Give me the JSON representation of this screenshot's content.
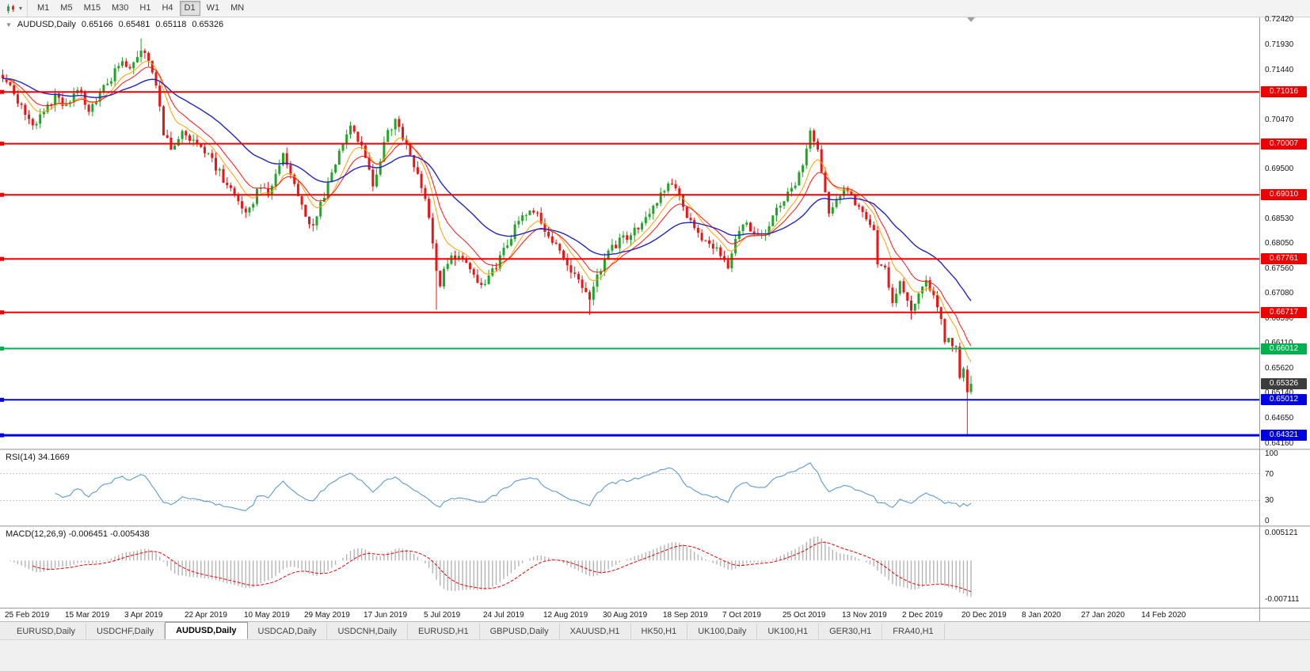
{
  "toolbar": {
    "chart_tool_icon": "candlestick-chart-icon",
    "timeframes": [
      "M1",
      "M5",
      "M15",
      "M30",
      "H1",
      "H4",
      "D1",
      "W1",
      "MN"
    ],
    "active_timeframe": "D1"
  },
  "chart": {
    "title": "AUDUSD,Daily",
    "ohlc": {
      "open": "0.65166",
      "high": "0.65481",
      "low": "0.65118",
      "close": "0.65326"
    },
    "price_ticks": [
      "0.72420",
      "0.71930",
      "0.71440",
      "0.70960",
      "0.70470",
      "0.69980",
      "0.69500",
      "0.69010",
      "0.68530",
      "0.68050",
      "0.67560",
      "0.67080",
      "0.66590",
      "0.66110",
      "0.65620",
      "0.65140",
      "0.64650",
      "0.64160"
    ],
    "price_range": {
      "top": 0.7247,
      "bottom": 0.6406
    },
    "hlines": [
      {
        "price": 0.71016,
        "label": "0.71016",
        "color": "#ee0000",
        "width": 2
      },
      {
        "price": 0.70007,
        "label": "0.70007",
        "color": "#ee0000",
        "width": 2
      },
      {
        "price": 0.6901,
        "label": "0.69010",
        "color": "#ee0000",
        "width": 2
      },
      {
        "price": 0.67761,
        "label": "0.67761",
        "color": "#ee0000",
        "width": 2
      },
      {
        "price": 0.66717,
        "label": "0.66717",
        "color": "#ee0000",
        "width": 2
      },
      {
        "price": 0.66012,
        "label": "0.66012",
        "color": "#00b050",
        "width": 2
      },
      {
        "price": 0.65012,
        "label": "0.65012",
        "color": "#0000e0",
        "width": 2
      },
      {
        "price": 0.64321,
        "label": "0.64321",
        "color": "#0000e0",
        "width": 3
      }
    ],
    "bid_label": {
      "price": 0.65326,
      "label": "0.65326",
      "bg": "#3c3c3c"
    }
  },
  "indicators": {
    "rsi": {
      "label": "RSI(14) 34.1669",
      "value": "34.1669",
      "period": 14,
      "color": "#5a9bd4",
      "ticks": [
        "100",
        "70",
        "30",
        "0"
      ],
      "levels": [
        70,
        30
      ]
    },
    "macd": {
      "label": "MACD(12,26,9) -0.006451 -0.005438",
      "main": "-0.006451",
      "signal": "-0.005438",
      "ticks": [
        "0.005121",
        "-0.007111"
      ],
      "range": [
        0.0056,
        -0.0078
      ],
      "hist_color": "#b4b4b4",
      "signal_color": "#f00000"
    }
  },
  "chart_data": {
    "type": "candlestick",
    "symbol": "AUDUSD",
    "period": "Daily",
    "date_start": "25 Feb 2019",
    "date_end": "14 Feb 2020",
    "count": 260,
    "last_candle": {
      "open": 0.65166,
      "high": 0.65481,
      "low": 0.65118,
      "close": 0.65326
    },
    "colors": {
      "up": "#21a527",
      "down": "#ec1414"
    },
    "anchors": [
      [
        0,
        0.7135
      ],
      [
        4,
        0.7085
      ],
      [
        8,
        0.7035
      ],
      [
        11,
        0.7062
      ],
      [
        14,
        0.7092
      ],
      [
        17,
        0.7072
      ],
      [
        20,
        0.7105
      ],
      [
        23,
        0.7068
      ],
      [
        26,
        0.71
      ],
      [
        29,
        0.713
      ],
      [
        32,
        0.7165
      ],
      [
        34,
        0.7148
      ],
      [
        37,
        0.7188
      ],
      [
        39,
        0.7165
      ],
      [
        41,
        0.712
      ],
      [
        43,
        0.7018
      ],
      [
        45,
        0.6995
      ],
      [
        48,
        0.7022
      ],
      [
        51,
        0.701
      ],
      [
        54,
        0.6988
      ],
      [
        57,
        0.6955
      ],
      [
        60,
        0.692
      ],
      [
        63,
        0.6888
      ],
      [
        65,
        0.6868
      ],
      [
        67,
        0.689
      ],
      [
        69,
        0.6922
      ],
      [
        71,
        0.6902
      ],
      [
        73,
        0.6942
      ],
      [
        75,
        0.6975
      ],
      [
        77,
        0.6945
      ],
      [
        79,
        0.6898
      ],
      [
        81,
        0.6852
      ],
      [
        83,
        0.6838
      ],
      [
        85,
        0.688
      ],
      [
        87,
        0.6925
      ],
      [
        89,
        0.6962
      ],
      [
        91,
        0.7008
      ],
      [
        93,
        0.7042
      ],
      [
        95,
        0.7012
      ],
      [
        97,
        0.6972
      ],
      [
        99,
        0.6925
      ],
      [
        101,
        0.6968
      ],
      [
        103,
        0.7025
      ],
      [
        105,
        0.7042
      ],
      [
        107,
        0.7012
      ],
      [
        109,
        0.6978
      ],
      [
        111,
        0.6942
      ],
      [
        113,
        0.6892
      ],
      [
        115,
        0.6812
      ],
      [
        116,
        0.6755
      ],
      [
        117,
        0.672
      ],
      [
        118,
        0.6762
      ],
      [
        120,
        0.6782
      ],
      [
        123,
        0.6772
      ],
      [
        126,
        0.6752
      ],
      [
        128,
        0.6722
      ],
      [
        130,
        0.6738
      ],
      [
        132,
        0.6762
      ],
      [
        135,
        0.6805
      ],
      [
        138,
        0.6852
      ],
      [
        141,
        0.6878
      ],
      [
        143,
        0.6862
      ],
      [
        146,
        0.6822
      ],
      [
        149,
        0.6788
      ],
      [
        152,
        0.6752
      ],
      [
        155,
        0.6718
      ],
      [
        157,
        0.6698
      ],
      [
        159,
        0.6738
      ],
      [
        162,
        0.6788
      ],
      [
        165,
        0.6812
      ],
      [
        168,
        0.6822
      ],
      [
        171,
        0.6848
      ],
      [
        174,
        0.6878
      ],
      [
        177,
        0.6908
      ],
      [
        179,
        0.6928
      ],
      [
        181,
        0.6898
      ],
      [
        183,
        0.6858
      ],
      [
        186,
        0.6828
      ],
      [
        189,
        0.6798
      ],
      [
        192,
        0.6788
      ],
      [
        194,
        0.6762
      ],
      [
        196,
        0.6818
      ],
      [
        198,
        0.6848
      ],
      [
        201,
        0.6832
      ],
      [
        204,
        0.6822
      ],
      [
        206,
        0.6862
      ],
      [
        209,
        0.6892
      ],
      [
        212,
        0.692
      ],
      [
        214,
        0.6955
      ],
      [
        216,
        0.702
      ],
      [
        218,
        0.6982
      ],
      [
        221,
        0.6868
      ],
      [
        223,
        0.6892
      ],
      [
        225,
        0.6918
      ],
      [
        227,
        0.6902
      ],
      [
        230,
        0.686
      ],
      [
        233,
        0.6828
      ],
      [
        234,
        0.676
      ],
      [
        236,
        0.6756
      ],
      [
        238,
        0.6692
      ],
      [
        240,
        0.6736
      ],
      [
        243,
        0.6674
      ],
      [
        245,
        0.6712
      ],
      [
        247,
        0.6736
      ],
      [
        249,
        0.67
      ],
      [
        251,
        0.6655
      ],
      [
        252,
        0.661
      ],
      [
        253,
        0.6626
      ],
      [
        255,
        0.6601
      ],
      [
        256,
        0.6546
      ],
      [
        257,
        0.6566
      ],
      [
        258,
        0.6516
      ],
      [
        259,
        0.6533
      ]
    ],
    "overrides": [
      {
        "i": 37,
        "h": 0.7206
      },
      {
        "i": 116,
        "l": 0.6677
      },
      {
        "i": 157,
        "l": 0.6667
      },
      {
        "i": 216,
        "h": 0.7032
      },
      {
        "i": 243,
        "l": 0.6658
      },
      {
        "i": 258,
        "o": 0.656,
        "h": 0.6568,
        "l": 0.6434,
        "c": 0.6516
      },
      {
        "i": 259,
        "o": 0.65166,
        "h": 0.65481,
        "l": 0.65118,
        "c": 0.65326
      }
    ],
    "ma": [
      {
        "period": 8,
        "color": "#ffa200",
        "width": 1
      },
      {
        "period": 13,
        "color": "#ff1414",
        "width": 1
      },
      {
        "period": 34,
        "color": "#2424c8",
        "width": 1.4
      }
    ]
  },
  "dates": [
    "25 Feb 2019",
    "15 Mar 2019",
    "3 Apr 2019",
    "22 Apr 2019",
    "10 May 2019",
    "29 May 2019",
    "17 Jun 2019",
    "5 Jul 2019",
    "24 Jul 2019",
    "12 Aug 2019",
    "30 Aug 2019",
    "18 Sep 2019",
    "7 Oct 2019",
    "25 Oct 2019",
    "13 Nov 2019",
    "2 Dec 2019",
    "20 Dec 2019",
    "8 Jan 2020",
    "27 Jan 2020",
    "14 Feb 2020"
  ],
  "tabs": {
    "active": "AUDUSD,Daily",
    "items": [
      "EURUSD,Daily",
      "USDCHF,Daily",
      "AUDUSD,Daily",
      "USDCAD,Daily",
      "USDCNH,Daily",
      "EURUSD,H1",
      "GBPUSD,Daily",
      "XAUUSD,H1",
      "HK50,H1",
      "UK100,Daily",
      "UK100,H1",
      "GER30,H1",
      "FRA40,H1"
    ]
  }
}
